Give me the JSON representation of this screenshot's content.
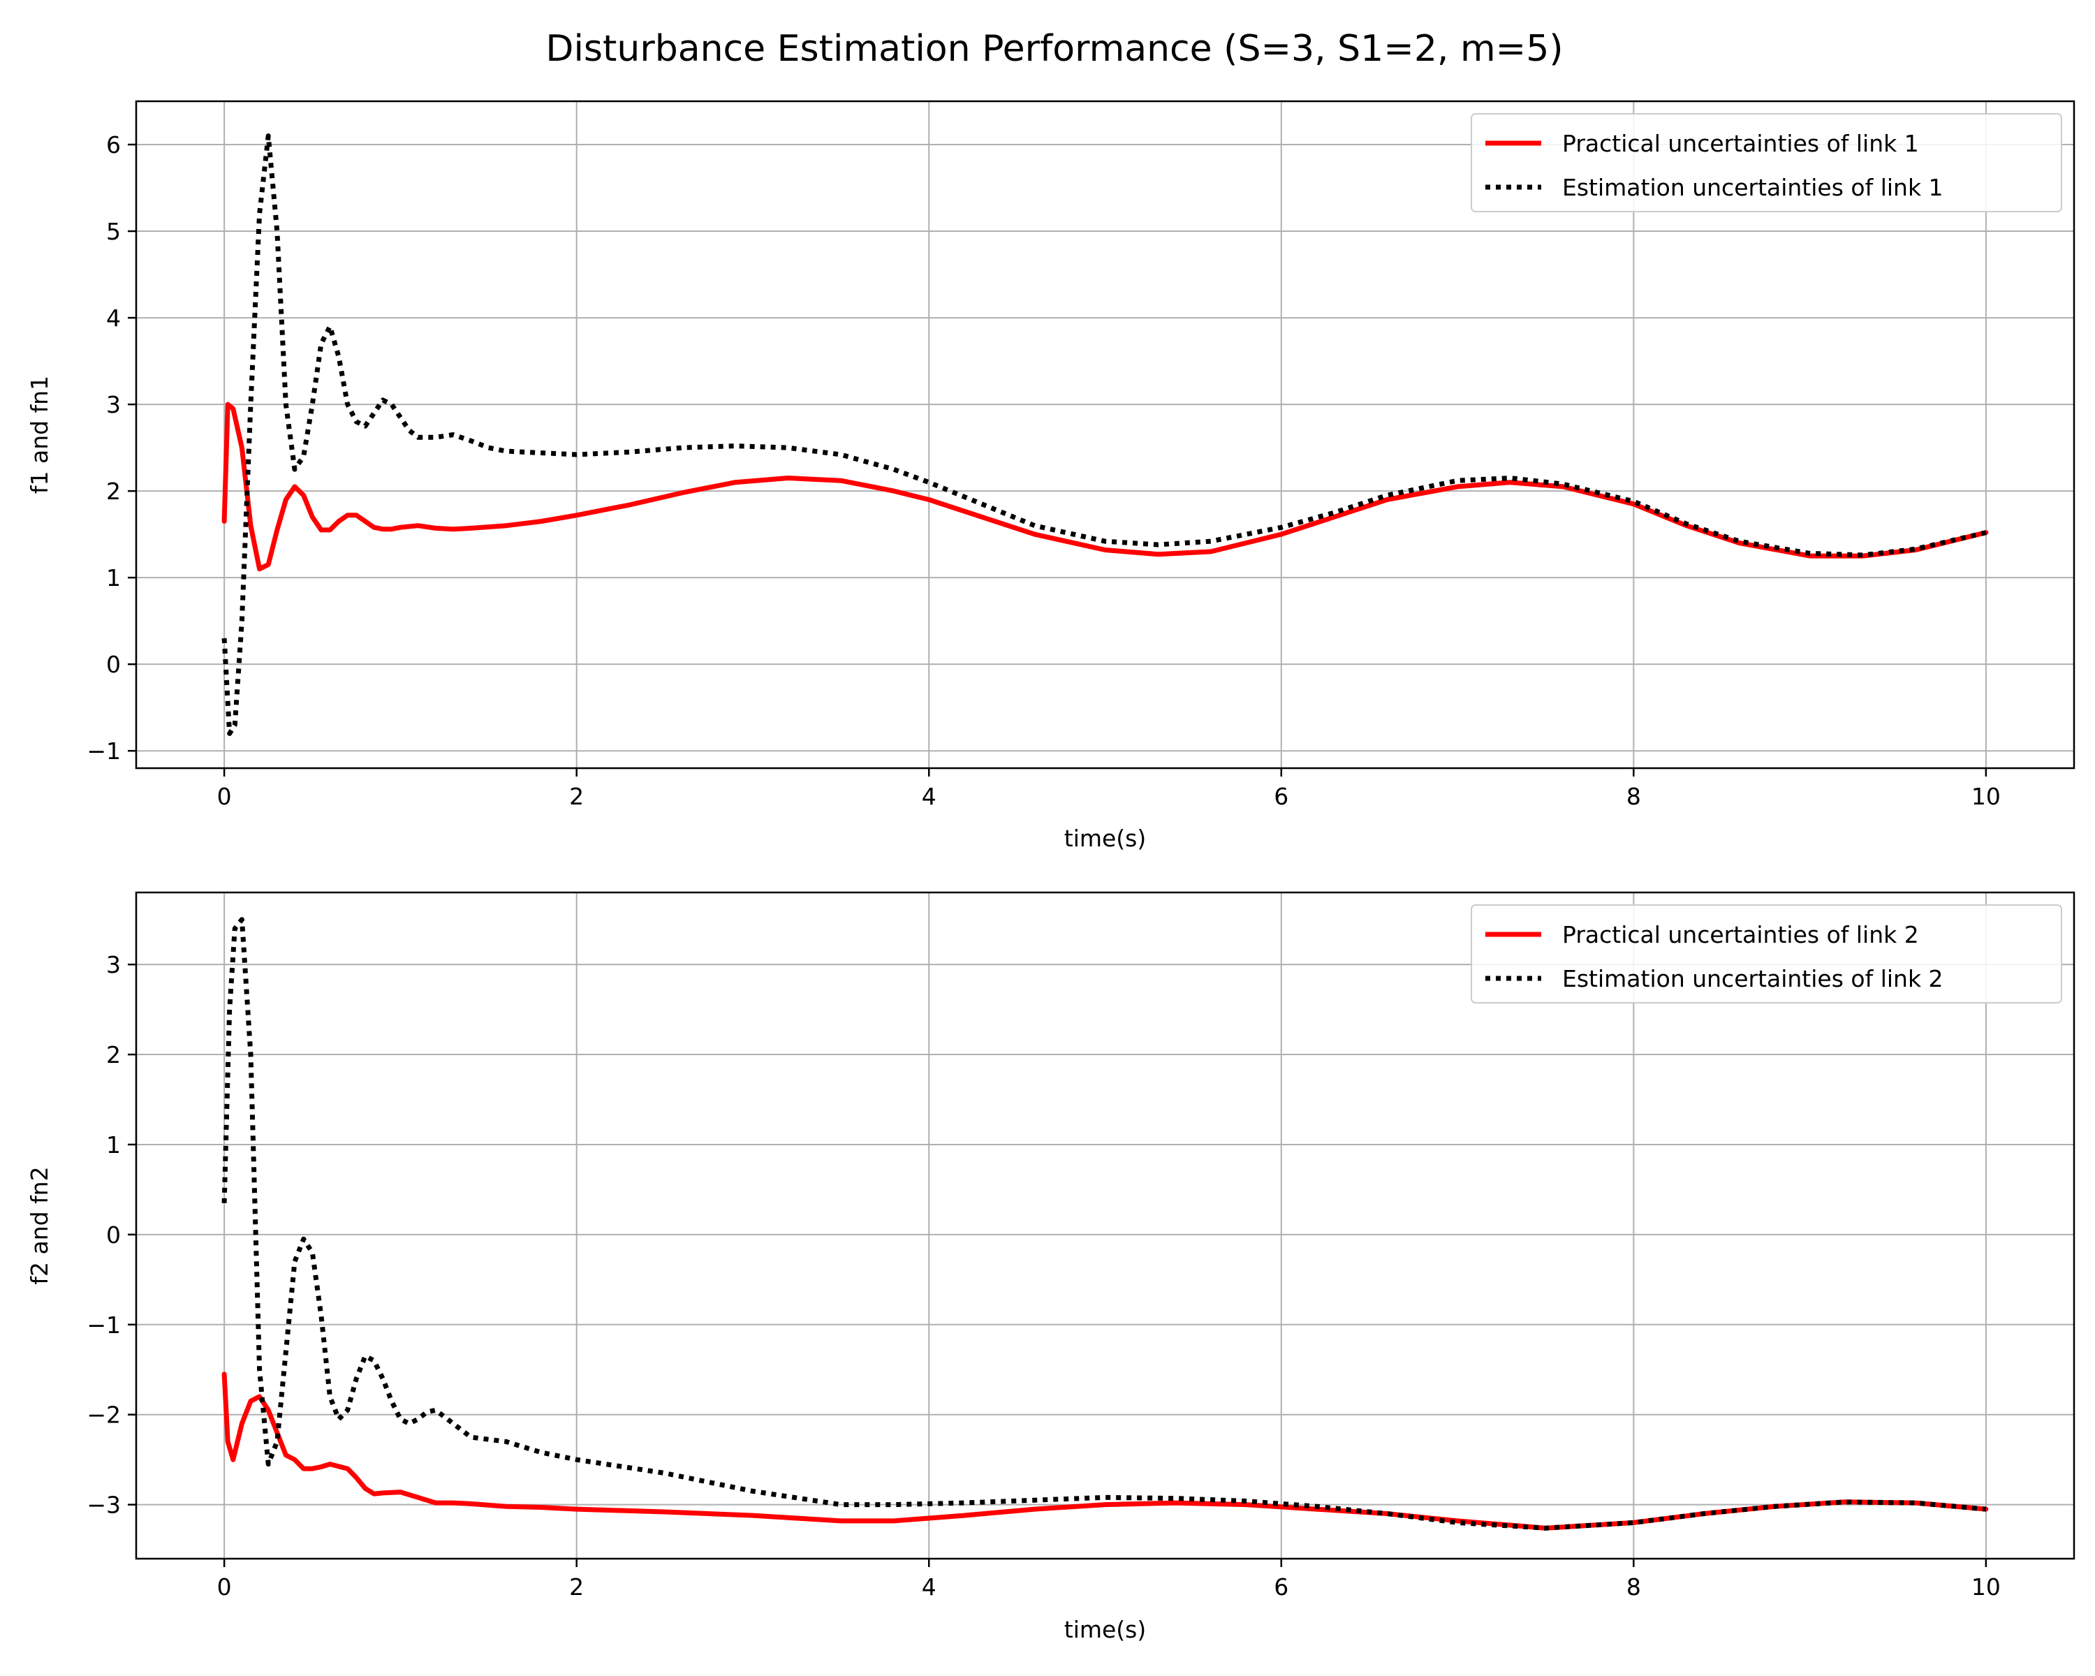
{
  "figure": {
    "title": "Disturbance Estimation Performance (S=3, S1=2, m=5)"
  },
  "chart_data": [
    {
      "type": "line",
      "xlabel": "time(s)",
      "ylabel": "f1 and fn1",
      "xlim": [
        -0.5,
        10.5
      ],
      "ylim": [
        -1.2,
        6.5
      ],
      "xticks": [
        0,
        2,
        4,
        6,
        8,
        10
      ],
      "yticks": [
        -1,
        0,
        1,
        2,
        3,
        4,
        5,
        6
      ],
      "grid": true,
      "legend_position": "top-right",
      "series": [
        {
          "name": "Practical uncertainties of link 1",
          "color": "#ff0000",
          "style": "solid",
          "x": [
            0,
            0.02,
            0.05,
            0.1,
            0.15,
            0.2,
            0.25,
            0.3,
            0.35,
            0.4,
            0.45,
            0.5,
            0.55,
            0.6,
            0.65,
            0.7,
            0.75,
            0.8,
            0.85,
            0.9,
            0.95,
            1.0,
            1.1,
            1.2,
            1.3,
            1.4,
            1.6,
            1.8,
            2.0,
            2.3,
            2.6,
            2.9,
            3.2,
            3.5,
            3.8,
            4.0,
            4.3,
            4.6,
            5.0,
            5.3,
            5.6,
            6.0,
            6.3,
            6.6,
            7.0,
            7.3,
            7.6,
            8.0,
            8.3,
            8.6,
            9.0,
            9.3,
            9.6,
            10.0
          ],
          "values": [
            1.65,
            3.0,
            2.95,
            2.5,
            1.6,
            1.1,
            1.15,
            1.55,
            1.9,
            2.05,
            1.95,
            1.7,
            1.55,
            1.55,
            1.65,
            1.72,
            1.72,
            1.65,
            1.58,
            1.56,
            1.56,
            1.58,
            1.6,
            1.57,
            1.56,
            1.57,
            1.6,
            1.65,
            1.72,
            1.84,
            1.98,
            2.1,
            2.15,
            2.12,
            2.0,
            1.9,
            1.7,
            1.5,
            1.32,
            1.27,
            1.3,
            1.5,
            1.7,
            1.9,
            2.05,
            2.1,
            2.05,
            1.85,
            1.6,
            1.4,
            1.25,
            1.25,
            1.32,
            1.52
          ]
        },
        {
          "name": "Estimation uncertainties of link 1",
          "color": "#000000",
          "style": "dotted",
          "x": [
            0,
            0.03,
            0.06,
            0.1,
            0.15,
            0.2,
            0.25,
            0.3,
            0.35,
            0.4,
            0.45,
            0.5,
            0.55,
            0.6,
            0.65,
            0.7,
            0.75,
            0.8,
            0.85,
            0.9,
            0.95,
            1.0,
            1.05,
            1.1,
            1.2,
            1.3,
            1.4,
            1.5,
            1.6,
            1.8,
            2.0,
            2.3,
            2.6,
            2.9,
            3.2,
            3.5,
            3.8,
            4.0,
            4.3,
            4.6,
            5.0,
            5.3,
            5.6,
            6.0,
            6.3,
            6.6,
            7.0,
            7.3,
            7.6,
            8.0,
            8.3,
            8.6,
            9.0,
            9.3,
            9.6,
            10.0
          ],
          "values": [
            0.3,
            -0.8,
            -0.7,
            0.5,
            3.0,
            5.2,
            6.1,
            5.0,
            3.0,
            2.25,
            2.4,
            3.0,
            3.7,
            3.9,
            3.55,
            3.0,
            2.8,
            2.75,
            2.9,
            3.05,
            3.0,
            2.85,
            2.7,
            2.62,
            2.62,
            2.65,
            2.58,
            2.5,
            2.46,
            2.44,
            2.42,
            2.45,
            2.5,
            2.52,
            2.5,
            2.42,
            2.25,
            2.1,
            1.85,
            1.6,
            1.42,
            1.38,
            1.42,
            1.58,
            1.75,
            1.95,
            2.12,
            2.15,
            2.08,
            1.88,
            1.62,
            1.42,
            1.28,
            1.26,
            1.33,
            1.52
          ]
        }
      ]
    },
    {
      "type": "line",
      "xlabel": "time(s)",
      "ylabel": "f2 and fn2",
      "xlim": [
        -0.5,
        10.5
      ],
      "ylim": [
        -3.6,
        3.8
      ],
      "xticks": [
        0,
        2,
        4,
        6,
        8,
        10
      ],
      "yticks": [
        -3,
        -2,
        -1,
        0,
        1,
        2,
        3
      ],
      "grid": true,
      "legend_position": "top-right",
      "series": [
        {
          "name": "Practical uncertainties of link 2",
          "color": "#ff0000",
          "style": "solid",
          "x": [
            0,
            0.02,
            0.05,
            0.1,
            0.15,
            0.2,
            0.25,
            0.3,
            0.35,
            0.4,
            0.45,
            0.5,
            0.55,
            0.6,
            0.7,
            0.75,
            0.8,
            0.85,
            0.9,
            1.0,
            1.1,
            1.2,
            1.3,
            1.4,
            1.6,
            1.8,
            2.0,
            2.5,
            3.0,
            3.5,
            3.8,
            4.2,
            4.6,
            5.0,
            5.4,
            5.8,
            6.2,
            6.6,
            7.0,
            7.5,
            8.0,
            8.4,
            8.8,
            9.2,
            9.6,
            10.0
          ],
          "values": [
            -1.55,
            -2.3,
            -2.5,
            -2.1,
            -1.85,
            -1.8,
            -1.95,
            -2.2,
            -2.45,
            -2.5,
            -2.6,
            -2.6,
            -2.58,
            -2.55,
            -2.6,
            -2.7,
            -2.82,
            -2.88,
            -2.87,
            -2.86,
            -2.92,
            -2.98,
            -2.98,
            -2.99,
            -3.02,
            -3.03,
            -3.05,
            -3.08,
            -3.12,
            -3.18,
            -3.18,
            -3.12,
            -3.05,
            -3.0,
            -2.98,
            -3.0,
            -3.05,
            -3.1,
            -3.18,
            -3.26,
            -3.2,
            -3.1,
            -3.02,
            -2.97,
            -2.98,
            -3.05
          ]
        },
        {
          "name": "Estimation uncertainties of link 2",
          "color": "#000000",
          "style": "dotted",
          "x": [
            0,
            0.03,
            0.06,
            0.1,
            0.15,
            0.2,
            0.25,
            0.3,
            0.35,
            0.4,
            0.45,
            0.5,
            0.55,
            0.6,
            0.65,
            0.7,
            0.75,
            0.8,
            0.85,
            0.9,
            0.95,
            1.0,
            1.05,
            1.1,
            1.15,
            1.2,
            1.3,
            1.4,
            1.6,
            1.8,
            2.0,
            2.5,
            3.0,
            3.5,
            3.8,
            4.2,
            4.6,
            5.0,
            5.4,
            5.8,
            6.2,
            6.6,
            7.0,
            7.5,
            8.0,
            8.4,
            8.8,
            9.2,
            9.6,
            10.0
          ],
          "values": [
            0.35,
            2.5,
            3.4,
            3.5,
            2.0,
            -1.5,
            -2.55,
            -2.3,
            -1.3,
            -0.3,
            -0.05,
            -0.2,
            -0.9,
            -1.8,
            -2.05,
            -1.95,
            -1.6,
            -1.35,
            -1.4,
            -1.6,
            -1.85,
            -2.05,
            -2.1,
            -2.05,
            -1.97,
            -1.95,
            -2.1,
            -2.25,
            -2.3,
            -2.42,
            -2.5,
            -2.65,
            -2.85,
            -3.0,
            -3.0,
            -2.98,
            -2.95,
            -2.92,
            -2.93,
            -2.96,
            -3.02,
            -3.1,
            -3.2,
            -3.26,
            -3.2,
            -3.1,
            -3.02,
            -2.97,
            -2.98,
            -3.05
          ]
        }
      ]
    }
  ]
}
